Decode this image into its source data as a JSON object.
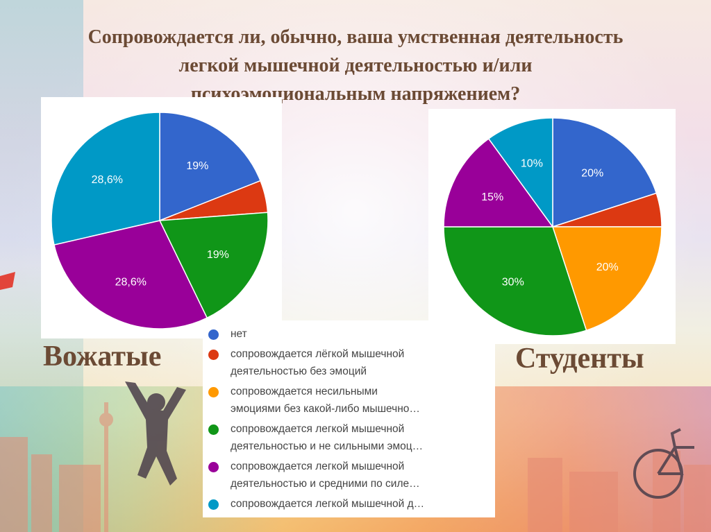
{
  "title": {
    "lines": [
      "Сопровождается ли, обычно, ваша умственная деятельность",
      "легкой мышечной деятельностью и/или",
      "психоэмоциональным напряжением?"
    ]
  },
  "groups": {
    "left": "Вожатые",
    "right": "Студенты"
  },
  "colors": {
    "net": "#3366cc",
    "light_no_emotion": "#dc3912",
    "emotion_no_muscle": "#ff9900",
    "light_weak_emotion": "#109618",
    "light_medium": "#990099",
    "light_d": "#0099c6"
  },
  "legend": [
    {
      "key": "net",
      "lines": [
        "нет"
      ]
    },
    {
      "key": "light_no_emotion",
      "lines": [
        "сопровождается лёгкой мышечной",
        "деятельностью без эмоций"
      ]
    },
    {
      "key": "emotion_no_muscle",
      "lines": [
        "сопровождается несильными",
        "эмоциями без какой-либо мышечно…"
      ]
    },
    {
      "key": "light_weak_emotion",
      "lines": [
        "сопровождается легкой мышечной",
        "деятельностью и не сильными эмоц…"
      ]
    },
    {
      "key": "light_medium",
      "lines": [
        "сопровождается легкой мышечной",
        "деятельностью и средними по силе…"
      ]
    },
    {
      "key": "light_d",
      "lines": [
        "сопровождается легкой мышечной д…"
      ]
    }
  ],
  "chart_data": [
    {
      "type": "pie",
      "group": "Вожатые",
      "slices": [
        {
          "key": "net",
          "value": 19.0,
          "label": "19%"
        },
        {
          "key": "light_no_emotion",
          "value": 4.8,
          "label": ""
        },
        {
          "key": "emotion_no_muscle",
          "value": 0,
          "label": ""
        },
        {
          "key": "light_weak_emotion",
          "value": 19.0,
          "label": "19%"
        },
        {
          "key": "light_medium",
          "value": 28.6,
          "label": "28,6%"
        },
        {
          "key": "light_d",
          "value": 28.6,
          "label": "28,6%"
        }
      ]
    },
    {
      "type": "pie",
      "group": "Студенты",
      "slices": [
        {
          "key": "net",
          "value": 20,
          "label": "20%"
        },
        {
          "key": "light_no_emotion",
          "value": 5,
          "label": ""
        },
        {
          "key": "emotion_no_muscle",
          "value": 20,
          "label": "20%"
        },
        {
          "key": "light_weak_emotion",
          "value": 30,
          "label": "30%"
        },
        {
          "key": "light_medium",
          "value": 15,
          "label": "15%"
        },
        {
          "key": "light_d",
          "value": 10,
          "label": "10%"
        }
      ]
    }
  ]
}
